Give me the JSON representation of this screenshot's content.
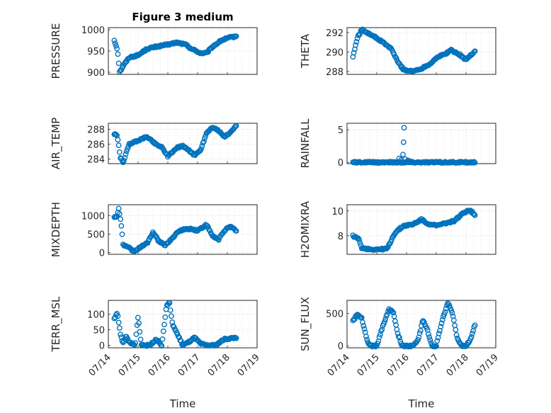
{
  "figure": {
    "title": "Figure 3 medium"
  },
  "colors": {
    "marker": "#0072bd",
    "axis": "#262626",
    "grid": "#dcdcdc"
  },
  "chart_data": [
    {
      "type": "scatter",
      "ylabel": "PRESSURE",
      "ylim": [
        895,
        1005
      ],
      "yticks": [
        900,
        950,
        1000
      ],
      "ytick_labels": [
        "900",
        "950",
        "1000"
      ],
      "xlim": [
        "07/14",
        "07/19"
      ],
      "xticks": [
        "07/14",
        "07/15",
        "07/16",
        "07/17",
        "07/18",
        "07/19"
      ],
      "show_x_ticklabels": false,
      "x_start_day": 14.2,
      "x_end_day": 18.3,
      "series": [
        {
          "knots_day": [
            14.2,
            14.3,
            14.38,
            14.5,
            14.7,
            15.0,
            15.3,
            15.6,
            16.0,
            16.3,
            16.6,
            16.8,
            17.1,
            17.3,
            17.5,
            17.8,
            18.0,
            18.3
          ],
          "knots_val": [
            975,
            955,
            900,
            915,
            935,
            940,
            955,
            960,
            965,
            970,
            965,
            955,
            945,
            945,
            960,
            975,
            980,
            985
          ]
        }
      ]
    },
    {
      "type": "scatter",
      "ylabel": "THETA",
      "ylim": [
        287.7,
        292.5
      ],
      "yticks": [
        288,
        290,
        292
      ],
      "ytick_labels": [
        "288",
        "290",
        "292"
      ],
      "xlim": [
        "07/14",
        "07/19"
      ],
      "xticks": [
        "07/14",
        "07/15",
        "07/16",
        "07/17",
        "07/18",
        "07/19"
      ],
      "show_x_ticklabels": false,
      "x_start_day": 14.2,
      "x_end_day": 18.3,
      "series": [
        {
          "knots_day": [
            14.2,
            14.35,
            14.5,
            14.8,
            15.2,
            15.5,
            15.7,
            15.9,
            16.2,
            16.5,
            16.8,
            17.0,
            17.3,
            17.5,
            17.8,
            18.0,
            18.3
          ],
          "knots_val": [
            289.5,
            291.5,
            292.3,
            291.8,
            291.0,
            290.3,
            289.0,
            288.2,
            288.0,
            288.3,
            288.8,
            289.4,
            289.8,
            290.2,
            289.7,
            289.2,
            290.1
          ]
        }
      ]
    },
    {
      "type": "scatter",
      "ylabel": "AIR_TEMP",
      "ylim": [
        283.4,
        288.8
      ],
      "yticks": [
        284,
        286,
        288
      ],
      "ytick_labels": [
        "284",
        "286",
        "288"
      ],
      "xlim": [
        "07/14",
        "07/19"
      ],
      "xticks": [
        "07/14",
        "07/15",
        "07/16",
        "07/17",
        "07/18",
        "07/19"
      ],
      "show_x_ticklabels": false,
      "x_start_day": 14.2,
      "x_end_day": 18.3,
      "series": [
        {
          "knots_day": [
            14.2,
            14.3,
            14.4,
            14.5,
            14.7,
            15.0,
            15.3,
            15.6,
            15.8,
            16.0,
            16.3,
            16.5,
            16.7,
            16.9,
            17.1,
            17.3,
            17.5,
            17.7,
            17.9,
            18.1,
            18.3
          ],
          "knots_val": [
            287.3,
            287.2,
            284.2,
            283.6,
            286.0,
            286.5,
            287.0,
            286.0,
            285.6,
            284.4,
            285.5,
            285.8,
            285.2,
            284.5,
            285.2,
            287.5,
            288.3,
            287.8,
            287.0,
            287.5,
            288.5
          ]
        }
      ]
    },
    {
      "type": "scatter",
      "ylabel": "RAINFALL",
      "ylim": [
        -0.2,
        6
      ],
      "yticks": [
        0,
        5
      ],
      "ytick_labels": [
        "0",
        "5"
      ],
      "xlim": [
        "07/14",
        "07/19"
      ],
      "xticks": [
        "07/14",
        "07/15",
        "07/16",
        "07/17",
        "07/18",
        "07/19"
      ],
      "show_x_ticklabels": false,
      "x_start_day": 14.2,
      "x_end_day": 18.3,
      "series": [
        {
          "knots_day": [
            14.2,
            18.3
          ],
          "knots_val": [
            0,
            0
          ],
          "spikes": [
            [
              15.92,
              5.3
            ],
            [
              15.9,
              3.1
            ],
            [
              15.88,
              1.2
            ],
            [
              15.75,
              0.6
            ],
            [
              15.82,
              0.4
            ],
            [
              16.05,
              0.3
            ],
            [
              16.1,
              0.2
            ],
            [
              15.95,
              0.5
            ]
          ]
        }
      ]
    },
    {
      "type": "scatter",
      "ylabel": "MIXDEPTH",
      "ylim": [
        -50,
        1300
      ],
      "yticks": [
        0,
        500,
        1000
      ],
      "ytick_labels": [
        "0",
        "500",
        "1000"
      ],
      "xlim": [
        "07/14",
        "07/19"
      ],
      "xticks": [
        "07/14",
        "07/15",
        "07/16",
        "07/17",
        "07/18",
        "07/19"
      ],
      "show_x_ticklabels": false,
      "x_start_day": 14.2,
      "x_end_day": 18.3,
      "series": [
        {
          "knots_day": [
            14.2,
            14.3,
            14.35,
            14.42,
            14.5,
            14.7,
            14.85,
            15.1,
            15.3,
            15.5,
            15.7,
            15.9,
            16.1,
            16.4,
            16.7,
            17.0,
            17.3,
            17.5,
            17.7,
            17.9,
            18.1,
            18.3
          ],
          "knots_val": [
            950,
            1000,
            1200,
            850,
            200,
            120,
            30,
            150,
            250,
            550,
            300,
            200,
            350,
            600,
            650,
            600,
            750,
            450,
            350,
            600,
            700,
            600
          ]
        }
      ]
    },
    {
      "type": "scatter",
      "ylabel": "H2OMIXRA",
      "ylim": [
        6.5,
        10.5
      ],
      "yticks": [
        8,
        10
      ],
      "ytick_labels": [
        "8",
        "10"
      ],
      "xlim": [
        "07/14",
        "07/19"
      ],
      "xticks": [
        "07/14",
        "07/15",
        "07/16",
        "07/17",
        "07/18",
        "07/19"
      ],
      "show_x_ticklabels": false,
      "x_start_day": 14.2,
      "x_end_day": 18.3,
      "series": [
        {
          "knots_day": [
            14.2,
            14.4,
            14.5,
            14.8,
            15.1,
            15.35,
            15.6,
            15.9,
            16.2,
            16.5,
            16.7,
            17.0,
            17.3,
            17.6,
            17.9,
            18.1,
            18.3
          ],
          "knots_val": [
            8.0,
            7.7,
            7.0,
            6.9,
            6.9,
            6.95,
            8.2,
            8.8,
            8.9,
            9.3,
            9.0,
            8.8,
            9.0,
            9.2,
            9.8,
            10.1,
            9.7
          ]
        }
      ]
    },
    {
      "type": "scatter",
      "ylabel": "TERR_MSL",
      "ylim": [
        -8,
        145
      ],
      "yticks": [
        0,
        50,
        100
      ],
      "ytick_labels": [
        "0",
        "50",
        "100"
      ],
      "xlim": [
        "07/14",
        "07/19"
      ],
      "xticks": [
        "07/14",
        "07/15",
        "07/16",
        "07/17",
        "07/18",
        "07/19"
      ],
      "xtick_labels": [
        "07/14",
        "07/15",
        "07/16",
        "07/17",
        "07/18",
        "07/19"
      ],
      "xlabel": "Time",
      "show_x_ticklabels": true,
      "x_start_day": 14.2,
      "x_end_day": 18.3,
      "series": [
        {
          "knots_day": [
            14.2,
            14.3,
            14.4,
            14.5,
            14.6,
            14.7,
            14.9,
            15.0,
            15.1,
            15.2,
            15.4,
            15.6,
            15.8,
            15.95,
            16.05,
            16.15,
            16.3,
            16.5,
            16.7,
            16.9,
            17.1,
            17.3,
            17.6,
            17.9,
            18.3
          ],
          "knots_val": [
            85,
            105,
            40,
            5,
            30,
            10,
            0,
            95,
            5,
            0,
            0,
            20,
            0,
            125,
            140,
            70,
            40,
            0,
            10,
            25,
            5,
            0,
            0,
            20,
            25
          ]
        }
      ]
    },
    {
      "type": "scatter",
      "ylabel": "SUN_FLUX",
      "ylim": [
        -30,
        700
      ],
      "yticks": [
        0,
        500
      ],
      "ytick_labels": [
        "0",
        "500"
      ],
      "xlim": [
        "07/14",
        "07/19"
      ],
      "xticks": [
        "07/14",
        "07/15",
        "07/16",
        "07/17",
        "07/18",
        "07/19"
      ],
      "xtick_labels": [
        "07/14",
        "07/15",
        "07/16",
        "07/17",
        "07/18",
        "07/19"
      ],
      "xlabel": "Time",
      "show_x_ticklabels": true,
      "x_start_day": 14.2,
      "x_end_day": 18.3,
      "series": [
        {
          "knots_day": [
            14.2,
            14.35,
            14.5,
            14.7,
            14.85,
            15.0,
            15.2,
            15.4,
            15.55,
            15.7,
            15.85,
            16.0,
            16.2,
            16.4,
            16.55,
            16.7,
            16.85,
            17.0,
            17.2,
            17.4,
            17.55,
            17.7,
            17.85,
            18.0,
            18.15,
            18.3
          ],
          "knots_val": [
            380,
            490,
            420,
            50,
            0,
            0,
            300,
            560,
            520,
            200,
            0,
            0,
            0,
            100,
            400,
            250,
            0,
            0,
            400,
            670,
            500,
            120,
            0,
            0,
            100,
            330
          ]
        }
      ]
    }
  ]
}
